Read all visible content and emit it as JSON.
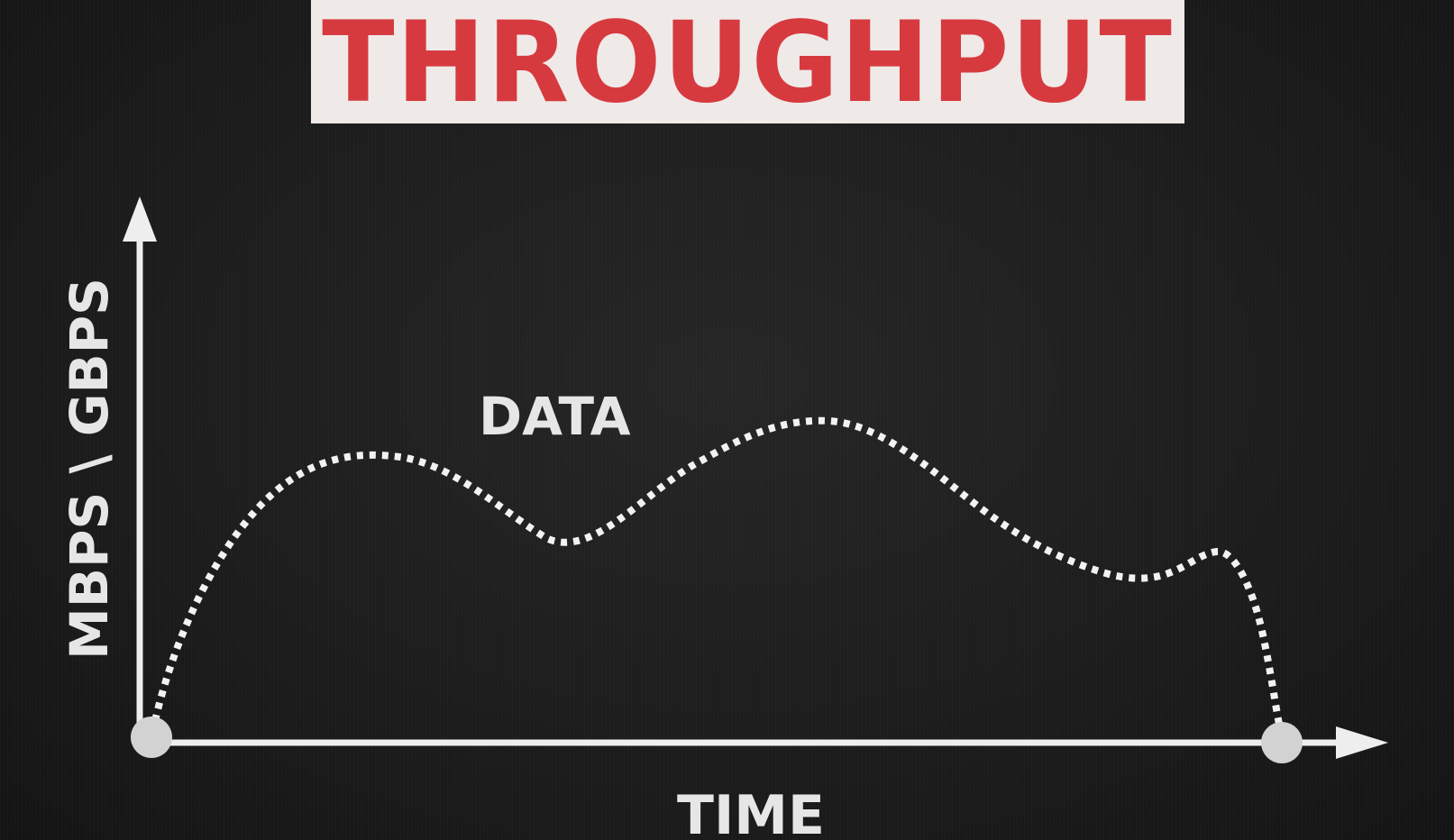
{
  "title": "THROUGHPUT",
  "y_axis_label": "MBPS \\ GBPS",
  "x_axis_label": "TIME",
  "curve_label": "DATA",
  "colors": {
    "background": "#1b1b1b",
    "title_banner": "#efeae8",
    "title_text": "#d63a3f",
    "axes": "#eeeeee",
    "curve": "#f2f2f2"
  }
}
